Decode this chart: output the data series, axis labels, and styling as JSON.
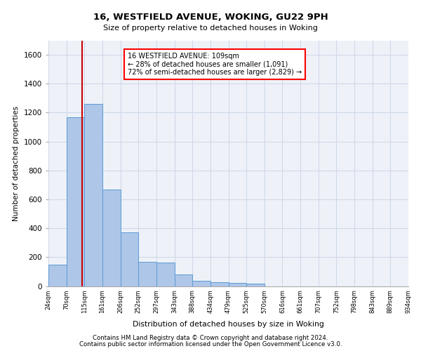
{
  "title1": "16, WESTFIELD AVENUE, WOKING, GU22 9PH",
  "title2": "Size of property relative to detached houses in Woking",
  "xlabel": "Distribution of detached houses by size in Woking",
  "ylabel": "Number of detached properties",
  "footnote1": "Contains HM Land Registry data © Crown copyright and database right 2024.",
  "footnote2": "Contains public sector information licensed under the Open Government Licence v3.0.",
  "annotation_line1": "16 WESTFIELD AVENUE: 109sqm",
  "annotation_line2": "← 28% of detached houses are smaller (1,091)",
  "annotation_line3": "72% of semi-detached houses are larger (2,829) →",
  "bar_values": [
    150,
    1170,
    1260,
    670,
    370,
    170,
    165,
    80,
    35,
    25,
    20,
    15,
    0,
    0,
    0,
    0,
    0,
    0,
    0,
    0
  ],
  "categories": [
    "24sqm",
    "70sqm",
    "115sqm",
    "161sqm",
    "206sqm",
    "252sqm",
    "297sqm",
    "343sqm",
    "388sqm",
    "434sqm",
    "479sqm",
    "525sqm",
    "570sqm",
    "616sqm",
    "661sqm",
    "707sqm",
    "752sqm",
    "798sqm",
    "843sqm",
    "889sqm",
    "934sqm"
  ],
  "bar_color": "#aec6e8",
  "bar_edge_color": "#5b9bd5",
  "grid_color": "#d0d8e8",
  "vline_color": "#cc0000",
  "ylim": [
    0,
    1700
  ],
  "yticks": [
    0,
    200,
    400,
    600,
    800,
    1000,
    1200,
    1400,
    1600
  ],
  "bg_color": "#ffffff",
  "plot_bg_color": "#eef2f8"
}
